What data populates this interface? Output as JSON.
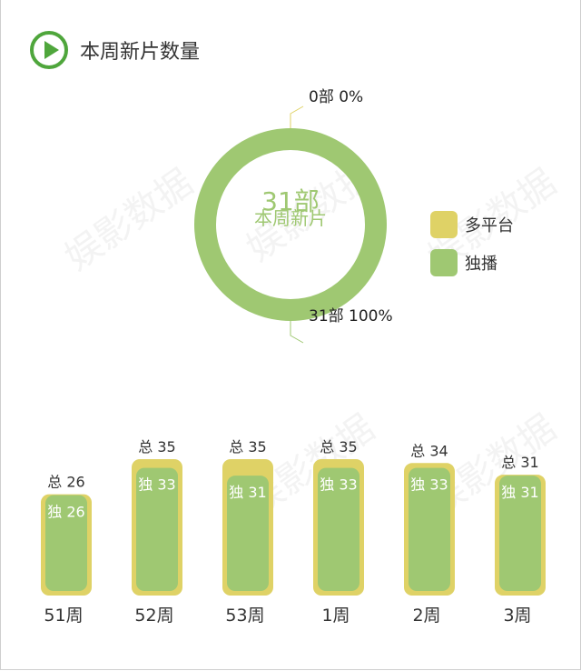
{
  "header": {
    "title": "本周新片数量"
  },
  "colors": {
    "multi": "#dfd266",
    "exclusive": "#9fc872",
    "accent": "#4fa63c"
  },
  "chart_data": [
    {
      "type": "pie",
      "center": {
        "value": "31部",
        "label": "本周新片"
      },
      "slices": [
        {
          "name": "多平台",
          "count": 0,
          "percent": 0,
          "label": "0部  0%"
        },
        {
          "name": "独播",
          "count": 31,
          "percent": 100,
          "label": "31部  100%"
        }
      ],
      "legend": [
        "多平台",
        "独播"
      ],
      "legend_position": "right"
    },
    {
      "type": "bar",
      "categories": [
        "51周",
        "52周",
        "53周",
        "1周",
        "2周",
        "3周"
      ],
      "series": [
        {
          "name": "总",
          "values": [
            26,
            35,
            35,
            35,
            34,
            31
          ]
        },
        {
          "name": "独",
          "values": [
            26,
            33,
            31,
            33,
            33,
            31
          ]
        }
      ],
      "total_labels": [
        "总 26",
        "总 35",
        "总 35",
        "总 35",
        "总 34",
        "总 31"
      ],
      "exclusive_labels": [
        "独 26",
        "独 33",
        "独 31",
        "独 33",
        "独 33",
        "独 31"
      ],
      "ylim": [
        0,
        35
      ]
    }
  ],
  "watermark": "娱影数据"
}
